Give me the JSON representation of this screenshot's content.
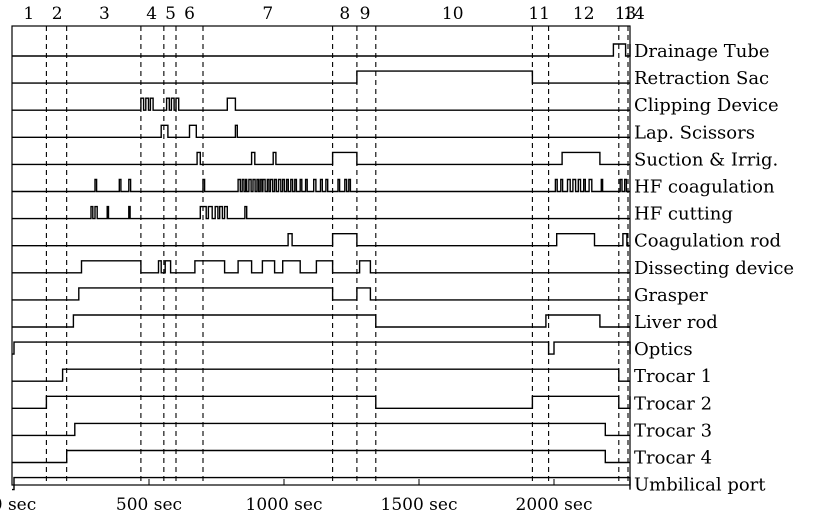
{
  "chart_data": {
    "type": "timeline",
    "xlabel": "",
    "ylabel": "",
    "xlim": [
      0,
      2270
    ],
    "x_ticks": [
      {
        "value": 0,
        "label": "0 sec"
      },
      {
        "value": 500,
        "label": "500 sec"
      },
      {
        "value": 1000,
        "label": "1000 sec"
      },
      {
        "value": 1500,
        "label": "1500 sec"
      },
      {
        "value": 2000,
        "label": "2000 sec"
      }
    ],
    "phase_boundaries": [
      120,
      195,
      470,
      555,
      600,
      700,
      1180,
      1270,
      1340,
      1920,
      1980,
      2240,
      2300
    ],
    "phase_labels": [
      {
        "label": "1",
        "x": 55
      },
      {
        "label": "2",
        "x": 160
      },
      {
        "label": "3",
        "x": 335
      },
      {
        "label": "4",
        "x": 510
      },
      {
        "label": "5",
        "x": 580
      },
      {
        "label": "6",
        "x": 650
      },
      {
        "label": "7",
        "x": 940
      },
      {
        "label": "8",
        "x": 1225
      },
      {
        "label": "9",
        "x": 1300
      },
      {
        "label": "10",
        "x": 1625
      },
      {
        "label": "11",
        "x": 1945
      },
      {
        "label": "12",
        "x": 2110
      },
      {
        "label": "13",
        "x": 2265
      },
      {
        "label": "14",
        "x": 2325
      }
    ],
    "series": [
      {
        "name": "Drainage Tube",
        "intervals": [
          [
            2220,
            2265
          ],
          [
            2310,
            2400
          ]
        ]
      },
      {
        "name": "Retraction Sac",
        "intervals": [
          [
            1270,
            1920
          ]
        ]
      },
      {
        "name": "Clipping Device",
        "intervals": [
          [
            470,
            480
          ],
          [
            488,
            498
          ],
          [
            505,
            515
          ],
          [
            565,
            575
          ],
          [
            583,
            593
          ],
          [
            600,
            610
          ],
          [
            790,
            820
          ]
        ]
      },
      {
        "name": "Lap. Scissors",
        "intervals": [
          [
            545,
            570
          ],
          [
            650,
            675
          ],
          [
            820,
            827
          ]
        ]
      },
      {
        "name": "Suction & Irrig.",
        "intervals": [
          [
            678,
            690
          ],
          [
            880,
            892
          ],
          [
            960,
            970
          ],
          [
            1180,
            1270
          ],
          [
            2030,
            2170
          ]
        ]
      },
      {
        "name": "HF coagulation",
        "intervals": [
          [
            300,
            306
          ],
          [
            390,
            396
          ],
          [
            425,
            432
          ],
          [
            700,
            706
          ],
          [
            830,
            838
          ],
          [
            845,
            852
          ],
          [
            858,
            862
          ],
          [
            870,
            878
          ],
          [
            885,
            893
          ],
          [
            900,
            906
          ],
          [
            912,
            918
          ],
          [
            922,
            930
          ],
          [
            938,
            944
          ],
          [
            950,
            958
          ],
          [
            965,
            972
          ],
          [
            980,
            988
          ],
          [
            995,
            1002
          ],
          [
            1010,
            1016
          ],
          [
            1025,
            1032
          ],
          [
            1040,
            1046
          ],
          [
            1060,
            1066
          ],
          [
            1080,
            1086
          ],
          [
            1110,
            1118
          ],
          [
            1135,
            1142
          ],
          [
            1155,
            1162
          ],
          [
            1200,
            1206
          ],
          [
            1225,
            1232
          ],
          [
            1240,
            1246
          ],
          [
            2005,
            2012
          ],
          [
            2025,
            2032
          ],
          [
            2050,
            2060
          ],
          [
            2070,
            2080
          ],
          [
            2090,
            2098
          ],
          [
            2110,
            2116
          ],
          [
            2130,
            2140
          ],
          [
            2175,
            2180
          ],
          [
            2245,
            2252
          ],
          [
            2262,
            2268
          ]
        ]
      },
      {
        "name": "HF cutting",
        "intervals": [
          [
            285,
            292
          ],
          [
            300,
            308
          ],
          [
            345,
            350
          ],
          [
            425,
            430
          ],
          [
            690,
            712
          ],
          [
            720,
            734
          ],
          [
            745,
            755
          ],
          [
            762,
            772
          ],
          [
            780,
            790
          ],
          [
            855,
            862
          ]
        ]
      },
      {
        "name": "Coagulation rod",
        "intervals": [
          [
            1015,
            1030
          ],
          [
            1180,
            1270
          ],
          [
            2010,
            2150
          ],
          [
            2255,
            2270
          ]
        ]
      },
      {
        "name": "Dissecting device",
        "intervals": [
          [
            250,
            470
          ],
          [
            535,
            545
          ],
          [
            560,
            580
          ],
          [
            670,
            780
          ],
          [
            830,
            880
          ],
          [
            920,
            965
          ],
          [
            995,
            1060
          ],
          [
            1120,
            1180
          ],
          [
            1280,
            1320
          ]
        ]
      },
      {
        "name": "Grasper",
        "intervals": [
          [
            240,
            1180
          ],
          [
            1270,
            1320
          ]
        ]
      },
      {
        "name": "Liver rod",
        "intervals": [
          [
            220,
            1340
          ],
          [
            1970,
            2170
          ]
        ]
      },
      {
        "name": "Optics",
        "intervals": [
          [
            0,
            1980
          ],
          [
            2000,
            2470
          ]
        ]
      },
      {
        "name": "Trocar 1",
        "intervals": [
          [
            180,
            2240
          ]
        ]
      },
      {
        "name": "Trocar 2",
        "intervals": [
          [
            120,
            1340
          ],
          [
            1920,
            2240
          ],
          [
            2290,
            2355
          ]
        ]
      },
      {
        "name": "Trocar 3",
        "intervals": [
          [
            225,
            2190
          ]
        ]
      },
      {
        "name": "Trocar 4",
        "intervals": [
          [
            195,
            2190
          ]
        ]
      },
      {
        "name": "Umbilical port",
        "intervals": [
          [
            0,
            2380
          ]
        ]
      }
    ]
  }
}
